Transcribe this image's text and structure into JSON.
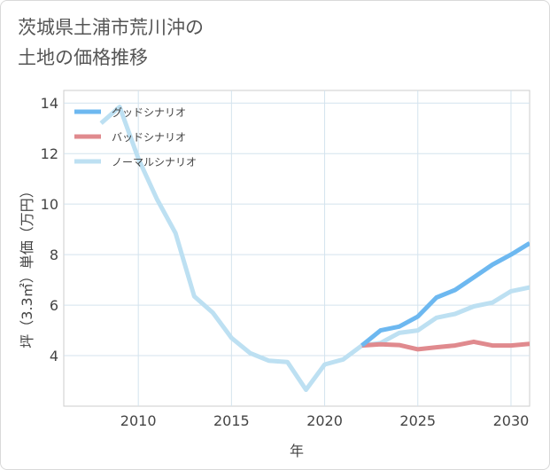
{
  "title": "茨城県土浦市荒川沖の\n土地の価格推移",
  "chart_data": {
    "type": "line",
    "xlabel": "年",
    "ylabel": "坪（3.3㎡）単価（万円）",
    "xlim": [
      2006,
      2031
    ],
    "ylim": [
      2.0,
      14.5
    ],
    "xticks": [
      2010,
      2015,
      2020,
      2025,
      2030
    ],
    "yticks": [
      4,
      6,
      8,
      10,
      12,
      14
    ],
    "grid": true,
    "legend_position": "top-left",
    "series": [
      {
        "name": "グッドシナリオ",
        "color": "#6db8f0",
        "x": [
          2022,
          2023,
          2024,
          2025,
          2026,
          2027,
          2028,
          2029,
          2030,
          2031
        ],
        "y": [
          4.4,
          5.0,
          5.15,
          5.55,
          6.3,
          6.6,
          7.1,
          7.6,
          8.0,
          8.45
        ]
      },
      {
        "name": "バッドシナリオ",
        "color": "#e08a8e",
        "x": [
          2022,
          2023,
          2024,
          2025,
          2026,
          2027,
          2028,
          2029,
          2030,
          2031
        ],
        "y": [
          4.4,
          4.45,
          4.42,
          4.25,
          4.33,
          4.4,
          4.55,
          4.4,
          4.4,
          4.47
        ]
      },
      {
        "name": "ノーマルシナリオ",
        "color": "#bde0f2",
        "x": [
          2008,
          2009,
          2010,
          2011,
          2012,
          2013,
          2014,
          2015,
          2016,
          2017,
          2018,
          2019,
          2020,
          2021,
          2022,
          2023,
          2024,
          2025,
          2026,
          2027,
          2028,
          2029,
          2030,
          2031
        ],
        "y": [
          13.2,
          13.85,
          11.8,
          10.2,
          8.85,
          6.35,
          5.7,
          4.7,
          4.1,
          3.8,
          3.75,
          2.65,
          3.65,
          3.85,
          4.4,
          4.5,
          4.9,
          5.0,
          5.5,
          5.65,
          5.95,
          6.1,
          6.55,
          6.7
        ]
      }
    ]
  }
}
